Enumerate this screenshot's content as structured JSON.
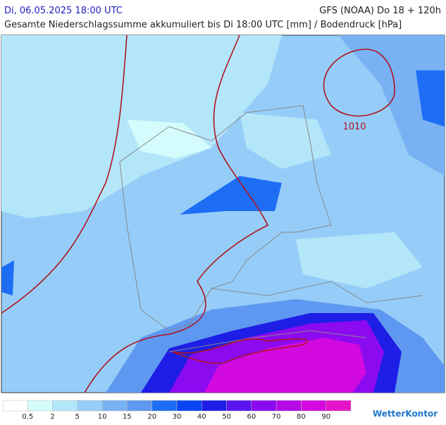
{
  "header": {
    "date": "Di, 06.05.2025 18:00 UTC",
    "model": "GFS (NOAA) Do 18 + 120h",
    "subtitle": "Gesamte Niederschlagssumme akkumuliert bis Di 18:00 UTC [mm] / Bodendruck [hPa]"
  },
  "map": {
    "isobar_label": "1010"
  },
  "legend": {
    "colors": [
      "#ffffff",
      "#d4fcfc",
      "#b4e6fa",
      "#96cdf8",
      "#78b2f4",
      "#5f98f0",
      "#1e6ef5",
      "#0a46f5",
      "#1e1ee6",
      "#5a14f0",
      "#8c0af0",
      "#b40ae6",
      "#d20ae0",
      "#e614c8"
    ],
    "labels": [
      0.5,
      2,
      5,
      10,
      15,
      20,
      30,
      40,
      50,
      60,
      70,
      80,
      90
    ]
  },
  "brand": "WetterKontor"
}
